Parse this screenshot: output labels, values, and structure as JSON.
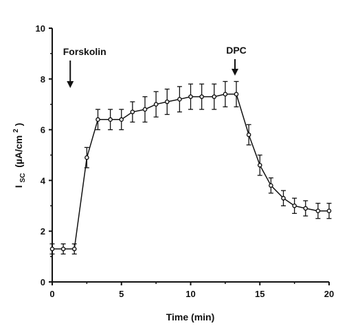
{
  "chart_data": {
    "type": "line",
    "title": "",
    "xlabel": "Time  (min)",
    "ylabel_main": "I",
    "ylabel_sub": "SC",
    "ylabel_units": "(µA/cm",
    "ylabel_sup": "2",
    "ylabel_close": " )",
    "xlim": [
      0,
      20
    ],
    "ylim": [
      0,
      10
    ],
    "xticks": [
      "0",
      "5",
      "10",
      "15",
      "20"
    ],
    "yticks": [
      "0",
      "2",
      "4",
      "6",
      "8",
      "10"
    ],
    "grid": false,
    "series": [
      {
        "x": [
          0.0,
          0.8,
          1.6,
          2.5,
          3.3,
          4.2,
          5.0,
          5.8,
          6.7,
          7.5,
          8.3,
          9.2,
          10.0,
          10.8,
          11.7,
          12.5,
          13.3,
          14.2,
          15.0,
          15.8,
          16.7,
          17.5,
          18.3,
          19.2,
          20.0
        ],
        "y": [
          1.3,
          1.3,
          1.3,
          4.9,
          6.4,
          6.4,
          6.4,
          6.7,
          6.8,
          7.0,
          7.1,
          7.2,
          7.3,
          7.3,
          7.3,
          7.4,
          7.4,
          5.8,
          4.6,
          3.8,
          3.3,
          3.0,
          2.9,
          2.8,
          2.8
        ],
        "err": [
          0.2,
          0.2,
          0.2,
          0.4,
          0.4,
          0.4,
          0.4,
          0.4,
          0.5,
          0.5,
          0.5,
          0.5,
          0.5,
          0.5,
          0.5,
          0.5,
          0.5,
          0.4,
          0.4,
          0.3,
          0.3,
          0.3,
          0.3,
          0.3,
          0.3
        ]
      }
    ],
    "annotations": [
      {
        "text": "Forskolin",
        "x": 1.6
      },
      {
        "text": "DPC",
        "x": 13.3
      }
    ]
  }
}
